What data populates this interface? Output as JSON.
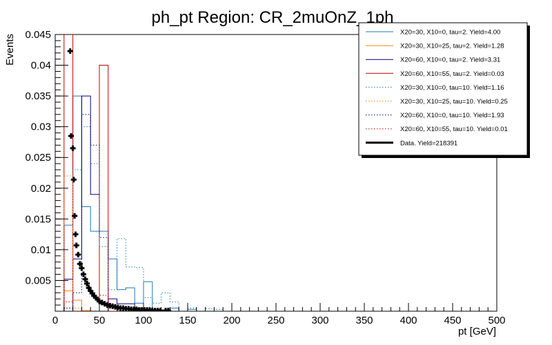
{
  "chart_data": {
    "type": "histogram",
    "title": "ph_pt Region: CR_2muOnZ_1ph",
    "xlabel": "pt [GeV]",
    "ylabel": "Events",
    "xlim": [
      0,
      500
    ],
    "ylim": [
      0,
      0.045
    ],
    "bin_width": 10,
    "x_ticks": [
      0,
      50,
      100,
      150,
      200,
      250,
      300,
      350,
      400,
      450,
      500
    ],
    "x_tick_labels": [
      "0",
      "50",
      "100",
      "150",
      "200",
      "250",
      "300",
      "350",
      "400",
      "450",
      "500"
    ],
    "y_ticks": [
      0.005,
      0.01,
      0.015,
      0.02,
      0.025,
      0.03,
      0.035,
      0.04,
      0.045
    ],
    "y_tick_labels": [
      "0.005",
      "0.01",
      "0.015",
      "0.02",
      "0.025",
      "0.03",
      "0.035",
      "0.04",
      "0.045"
    ],
    "legend_position": "top-right",
    "series": [
      {
        "name": "X20=30, X10=0, tau=2. Yield=4.00",
        "color": "#1f77b4",
        "style": "solid",
        "bins": [
          [
            10,
            0.014
          ],
          [
            20,
            0.035
          ],
          [
            30,
            0.017
          ],
          [
            40,
            0.013
          ],
          [
            50,
            0.013
          ],
          [
            60,
            0.0085
          ],
          [
            70,
            0.0035
          ],
          [
            80,
            0.0038
          ],
          [
            90,
            0.0013
          ],
          [
            100,
            0.0048
          ],
          [
            110,
            0.0003
          ],
          [
            130,
            0.0005
          ],
          [
            150,
            0.0003
          ]
        ]
      },
      {
        "name": "X20=30, X10=25, tau=2. Yield=1.28",
        "color": "#ff7f0e",
        "style": "solid",
        "bins": [
          [
            10,
            0.0033
          ],
          [
            20,
            0.0018
          ],
          [
            30,
            0.0001
          ]
        ]
      },
      {
        "name": "X20=60, X10=0, tau=2. Yield=3.31",
        "color": "#000080",
        "style": "solid",
        "bins": [
          [
            10,
            0.0052
          ],
          [
            20,
            0.0085
          ],
          [
            30,
            0.035
          ],
          [
            40,
            0.019
          ],
          [
            50,
            0.0012
          ],
          [
            60,
            0.002
          ],
          [
            70,
            0.0012
          ],
          [
            80,
            0.0012
          ],
          [
            90,
            0.0005
          ],
          [
            100,
            0.0003
          ],
          [
            110,
            0.0002
          ]
        ]
      },
      {
        "name": "X20=60, X10=55, tau=2. Yield=0.03",
        "color": "#c00000",
        "style": "solid",
        "bins": [
          [
            10,
            0.0475
          ],
          [
            50,
            0.04
          ],
          [
            60,
            0.0
          ]
        ]
      },
      {
        "name": "X20=30, X10=0, tau=10. Yield=1.16",
        "color": "#1f77b4",
        "style": "dotted",
        "bins": [
          [
            10,
            0.0005
          ],
          [
            20,
            0.023
          ],
          [
            30,
            0.03
          ],
          [
            40,
            0.024
          ],
          [
            50,
            0.0105
          ],
          [
            60,
            0.0035
          ],
          [
            70,
            0.0118
          ],
          [
            80,
            0.0072
          ],
          [
            90,
            0.0071
          ],
          [
            100,
            0.0022
          ],
          [
            110,
            0.0013
          ],
          [
            120,
            0.003
          ],
          [
            130,
            0.0015
          ],
          [
            150,
            0.0005
          ],
          [
            170,
            0.0004
          ],
          [
            180,
            0.0003
          ]
        ]
      },
      {
        "name": "X20=30, X10=25, tau=10. Yield=0.25",
        "color": "#ff7f0e",
        "style": "dotted",
        "bins": [
          [
            10,
            0.022
          ],
          [
            20,
            0.0005
          ]
        ]
      },
      {
        "name": "X20=60, X10=0, tau=10. Yield=1.93",
        "color": "#000080",
        "style": "dotted",
        "bins": [
          [
            10,
            0.0005
          ],
          [
            20,
            0.003
          ],
          [
            30,
            0.032
          ],
          [
            40,
            0.027
          ],
          [
            50,
            0.012
          ],
          [
            60,
            0.0005
          ],
          [
            70,
            0.0005
          ],
          [
            80,
            0.0004
          ],
          [
            90,
            0.0002
          ]
        ]
      },
      {
        "name": "X20=60, X10=55, tau=10. Yield=0.01",
        "color": "#c00000",
        "style": "dotted",
        "bins": [
          [
            10,
            0.0015
          ],
          [
            20,
            0.0
          ],
          [
            30,
            0.0
          ],
          [
            50,
            0.0026
          ],
          [
            60,
            0.0
          ]
        ]
      },
      {
        "name": "Data. Yield=218391",
        "color": "#000000",
        "style": "markers",
        "points": [
          [
            17,
            0.0423
          ],
          [
            18,
            0.0285
          ],
          [
            20,
            0.0265
          ],
          [
            21,
            0.0214
          ],
          [
            22,
            0.0155
          ],
          [
            23,
            0.0125
          ],
          [
            24,
            0.0107
          ],
          [
            26,
            0.0092
          ],
          [
            28,
            0.0077
          ],
          [
            30,
            0.007
          ],
          [
            32,
            0.006
          ],
          [
            34,
            0.0052
          ],
          [
            36,
            0.0045
          ],
          [
            38,
            0.0038
          ],
          [
            40,
            0.0033
          ],
          [
            42,
            0.0029
          ],
          [
            44,
            0.0025
          ],
          [
            46,
            0.0022
          ],
          [
            48,
            0.0019
          ],
          [
            50,
            0.0016
          ],
          [
            53,
            0.0014
          ],
          [
            56,
            0.0012
          ],
          [
            59,
            0.001
          ],
          [
            62,
            0.0009
          ],
          [
            65,
            0.0008
          ],
          [
            68,
            0.0007
          ],
          [
            71,
            0.0006
          ],
          [
            74,
            0.0005
          ],
          [
            77,
            0.0005
          ],
          [
            80,
            0.0004
          ],
          [
            83,
            0.0004
          ],
          [
            86,
            0.0003
          ],
          [
            89,
            0.0003
          ],
          [
            92,
            0.0003
          ],
          [
            95,
            0.0002
          ],
          [
            98,
            0.0002
          ],
          [
            101,
            0.0002
          ],
          [
            104,
            0.0002
          ],
          [
            107,
            0.0002
          ],
          [
            110,
            0.0001
          ],
          [
            113,
            0.0001
          ],
          [
            116,
            0.0001
          ],
          [
            119,
            0.0001
          ],
          [
            125,
            0.0001
          ],
          [
            128,
            0.0001
          ]
        ]
      }
    ]
  }
}
